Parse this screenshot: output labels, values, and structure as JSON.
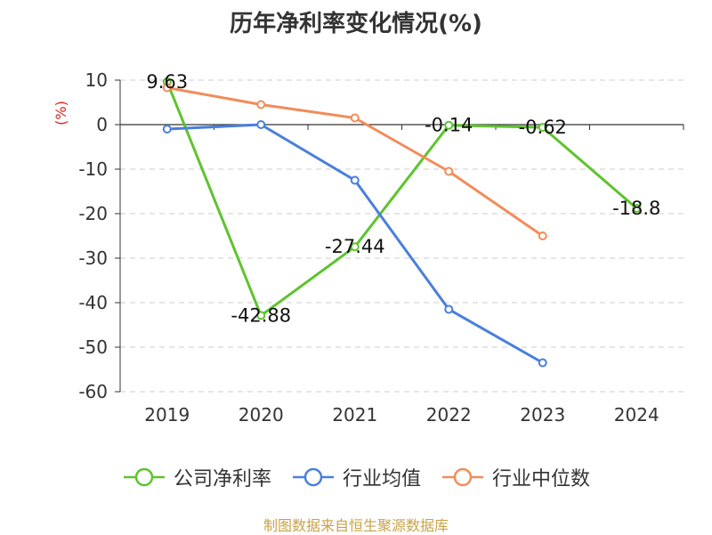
{
  "chart_data": {
    "type": "line",
    "title": "历年净利率变化情况(%)",
    "ylabel": "(%)",
    "xlabel": "",
    "categories": [
      "2019",
      "2020",
      "2021",
      "2022",
      "2023",
      "2024"
    ],
    "ylim": [
      -60,
      10
    ],
    "yticks": [
      10,
      0,
      -10,
      -20,
      -30,
      -40,
      -50,
      -60
    ],
    "grid": "horizontal-dashed",
    "legend_position": "bottom",
    "series": [
      {
        "name": "公司净利率",
        "color": "#5ec42e",
        "values": [
          9.63,
          -42.88,
          -27.44,
          -0.14,
          -0.62,
          -18.8
        ],
        "labels": [
          "9.63",
          "-42.88",
          "-27.44",
          "-0.14",
          "-0.62",
          "-18.8"
        ]
      },
      {
        "name": "行业均值",
        "color": "#4a7fdc",
        "values": [
          -1,
          0,
          -12.5,
          -41.5,
          -53.5,
          null
        ]
      },
      {
        "name": "行业中位数",
        "color": "#f28c5a",
        "values": [
          8.3,
          4.5,
          1.5,
          -10.5,
          -25,
          null
        ]
      }
    ]
  },
  "source": "制图数据来自恒生聚源数据库"
}
